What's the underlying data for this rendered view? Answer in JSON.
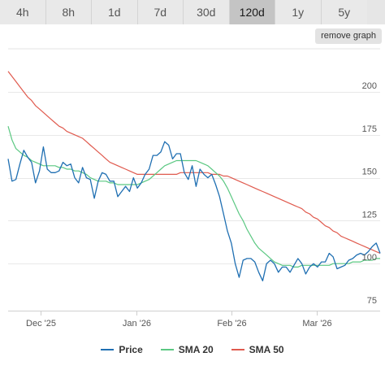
{
  "tabs": [
    {
      "label": "4h",
      "active": false
    },
    {
      "label": "8h",
      "active": false
    },
    {
      "label": "1d",
      "active": false
    },
    {
      "label": "7d",
      "active": false
    },
    {
      "label": "30d",
      "active": false
    },
    {
      "label": "120d",
      "active": true
    },
    {
      "label": "1y",
      "active": false
    },
    {
      "label": "5y",
      "active": false
    }
  ],
  "remove_graph_label": "remove graph",
  "chart_data": {
    "type": "line",
    "x_tick_labels": [
      "Dec '25",
      "Jan '26",
      "Feb '26",
      "Mar '26"
    ],
    "y_ticks": [
      75,
      100,
      125,
      150,
      175,
      200
    ],
    "ylim": [
      72,
      217
    ],
    "grid": true,
    "legend_position": "bottom",
    "series": [
      {
        "name": "Price",
        "color": "#1f6fb2",
        "values": [
          161,
          148,
          149,
          158,
          166,
          162,
          159,
          147,
          154,
          168,
          155,
          153,
          153,
          154,
          159,
          157,
          158,
          150,
          147,
          156,
          150,
          149,
          138,
          148,
          153,
          152,
          148,
          148,
          139,
          142,
          145,
          142,
          150,
          144,
          147,
          152,
          155,
          163,
          163,
          165,
          171,
          169,
          161,
          164,
          164,
          153,
          149,
          157,
          145,
          155,
          152,
          150,
          152,
          146,
          139,
          129,
          119,
          112,
          100,
          92,
          102,
          103,
          103,
          101,
          95,
          90,
          100,
          102,
          100,
          95,
          98,
          98,
          95,
          99,
          103,
          100,
          94,
          98,
          100,
          98,
          101,
          101,
          106,
          104,
          97,
          98,
          99,
          102,
          103,
          105,
          106,
          105,
          107,
          110,
          112,
          106
        ]
      },
      {
        "name": "SMA 20",
        "color": "#5bc882",
        "values": [
          180,
          172,
          167,
          165,
          163,
          162,
          160,
          159,
          158,
          157,
          157,
          157,
          157,
          156,
          156,
          155,
          155,
          154,
          154,
          153,
          152,
          150,
          149,
          148,
          148,
          148,
          147,
          147,
          146,
          146,
          146,
          146,
          146,
          146,
          147,
          148,
          149,
          151,
          153,
          155,
          157,
          158,
          159,
          160,
          160,
          160,
          160,
          160,
          160,
          159,
          158,
          157,
          155,
          153,
          151,
          148,
          144,
          139,
          134,
          129,
          125,
          120,
          116,
          112,
          109,
          107,
          105,
          103,
          101,
          100,
          99,
          99,
          99,
          98,
          98,
          99,
          99,
          99,
          99,
          99,
          99,
          99,
          99,
          100,
          100,
          100,
          100,
          100,
          101,
          101,
          101,
          102,
          102,
          102,
          103,
          103
        ]
      },
      {
        "name": "SMA 50",
        "color": "#e05a4e",
        "values": [
          212,
          209,
          206,
          203,
          200,
          197,
          195,
          192,
          190,
          188,
          186,
          184,
          182,
          180,
          179,
          177,
          176,
          175,
          174,
          173,
          171,
          169,
          167,
          165,
          163,
          161,
          159,
          158,
          157,
          156,
          155,
          154,
          153,
          152,
          152,
          152,
          152,
          152,
          152,
          152,
          152,
          152,
          152,
          152,
          153,
          153,
          153,
          153,
          153,
          153,
          153,
          153,
          152,
          152,
          152,
          151,
          151,
          150,
          149,
          148,
          147,
          146,
          145,
          144,
          143,
          142,
          141,
          140,
          139,
          138,
          137,
          136,
          135,
          134,
          133,
          132,
          130,
          129,
          127,
          126,
          124,
          122,
          121,
          119,
          118,
          116,
          115,
          114,
          113,
          112,
          111,
          110,
          109,
          108,
          107,
          106
        ]
      }
    ]
  }
}
